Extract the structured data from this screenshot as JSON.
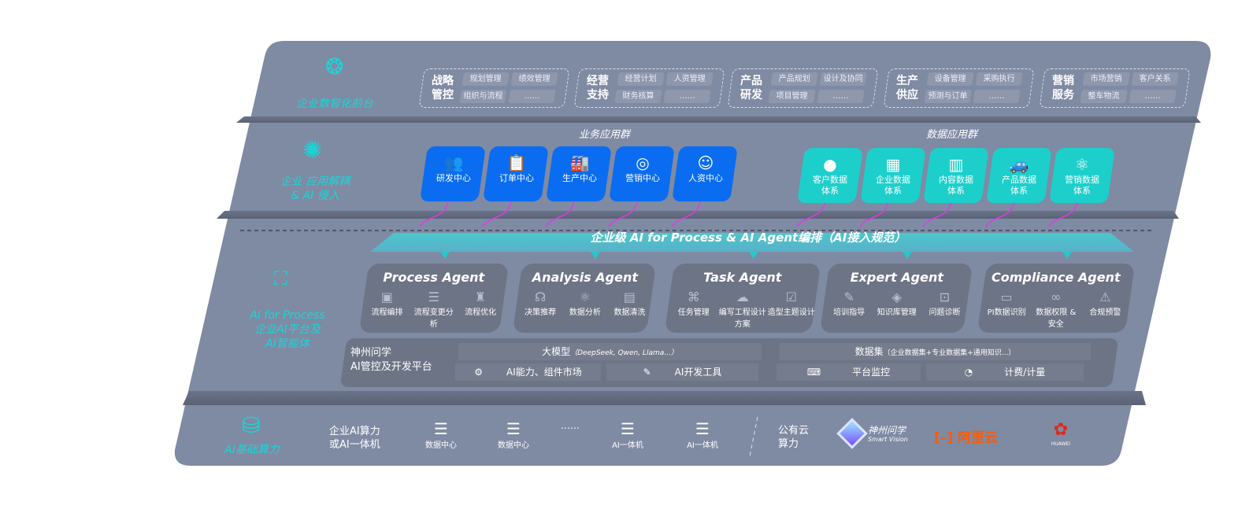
{
  "colors": {
    "panel": "#7f8aa3",
    "accent_cyan": "#19d6d6",
    "business_blue": "#0a6cf0",
    "data_teal": "#1ccfcb",
    "arrow_magenta": "#e03ae8",
    "aliyun": "#ff5a00",
    "huawei": "#e3261e"
  },
  "layer1": {
    "label": "企业数智化前台",
    "icon": "brain-icon",
    "groups": [
      {
        "title": "战略\n管控",
        "items": [
          "规划管理",
          "绩效管理",
          "组织与流程",
          "……"
        ]
      },
      {
        "title": "经营\n支持",
        "items": [
          "经营计划",
          "人资管理",
          "财务核算",
          "……"
        ]
      },
      {
        "title": "产品\n研发",
        "items": [
          "产品规划",
          "设计及协同",
          "项目管理",
          "……"
        ]
      },
      {
        "title": "生产\n供应",
        "items": [
          "设备管理",
          "采购执行",
          "预测与订单",
          "……"
        ]
      },
      {
        "title": "营销\n服务",
        "items": [
          "市场营销",
          "客户关系",
          "整车物流",
          "……"
        ]
      }
    ]
  },
  "layer2": {
    "label": "企业 应用解耦\n& AI 侵入",
    "icon": "molecule-icon",
    "business_title": "业务应用群",
    "business": [
      {
        "label": "研发中心",
        "icon": "team-icon"
      },
      {
        "label": "订单中心",
        "icon": "clipboard-icon"
      },
      {
        "label": "生产中心",
        "icon": "factory-icon"
      },
      {
        "label": "营销中心",
        "icon": "target-icon"
      },
      {
        "label": "人资中心",
        "icon": "person-icon"
      }
    ],
    "data_title": "数据应用群",
    "data": [
      {
        "label": "客户数据\n体系",
        "icon": "user-icon"
      },
      {
        "label": "企业数据\n体系",
        "icon": "building-icon"
      },
      {
        "label": "内容数据\n体系",
        "icon": "books-icon"
      },
      {
        "label": "产品数据\n体系",
        "icon": "car-icon"
      },
      {
        "label": "营销数据\n体系",
        "icon": "atom-icon"
      }
    ]
  },
  "orchestration": "企业级 AI for Process & AI Agent编排（AI接入规范）",
  "layer3": {
    "label_en": "AI for Process",
    "label_cn": "企业AI平台及\nAI智能体",
    "icon": "face-scan-icon",
    "agents": [
      {
        "name": "Process Agent",
        "features": [
          {
            "label": "流程编排",
            "icon": "chart-icon"
          },
          {
            "label": "流程变更分析",
            "icon": "list-icon"
          },
          {
            "label": "流程优化",
            "icon": "tools-icon"
          }
        ]
      },
      {
        "name": "Analysis Agent",
        "features": [
          {
            "label": "决策推荐",
            "icon": "head-icon"
          },
          {
            "label": "数据分析",
            "icon": "atom-icon"
          },
          {
            "label": "数据清洗",
            "icon": "document-icon"
          }
        ]
      },
      {
        "name": "Task Agent",
        "features": [
          {
            "label": "任务管理",
            "icon": "network-icon"
          },
          {
            "label": "编写工程设计方案",
            "icon": "cloud-icon"
          },
          {
            "label": "造型主题设计",
            "icon": "checklist-icon"
          }
        ]
      },
      {
        "name": "Expert Agent",
        "features": [
          {
            "label": "培训指导",
            "icon": "pencil-icon"
          },
          {
            "label": "知识库管理",
            "icon": "layers-icon"
          },
          {
            "label": "问题诊断",
            "icon": "diagnose-icon"
          }
        ]
      },
      {
        "name": "Compliance Agent",
        "features": [
          {
            "label": "PI数据识别",
            "icon": "id-icon"
          },
          {
            "label": "数据权限 &\n安全",
            "icon": "link-icon"
          },
          {
            "label": "合规预警",
            "icon": "alert-icon"
          }
        ]
      }
    ],
    "platform": {
      "title": "神州问学\nAI管控及开发平台",
      "model_title": "大模型",
      "model_note": "（DeepSeek, Qwen, Llama...）",
      "market": "AI能力、组件市场",
      "devtools": "AI开发工具",
      "dataset_title": "数据集",
      "dataset_note": "（企业数据集+专业数据集+通用知识...）",
      "monitor": "平台监控",
      "billing": "计费/计量"
    }
  },
  "layer4": {
    "label": "AI基础算力",
    "icon": "database-icon",
    "onprem": "企业AI算力\n或AI一体机",
    "servers": [
      "数据中心",
      "数据中心",
      "AI一体机",
      "AI一体机"
    ],
    "ellipsis": "……",
    "cloud": "公有云\n算力",
    "vendors": {
      "sv_cn": "神州问学",
      "sv_en": "Smart Vision",
      "aliyun": "阿里云",
      "huawei": "HUAWEI"
    }
  }
}
